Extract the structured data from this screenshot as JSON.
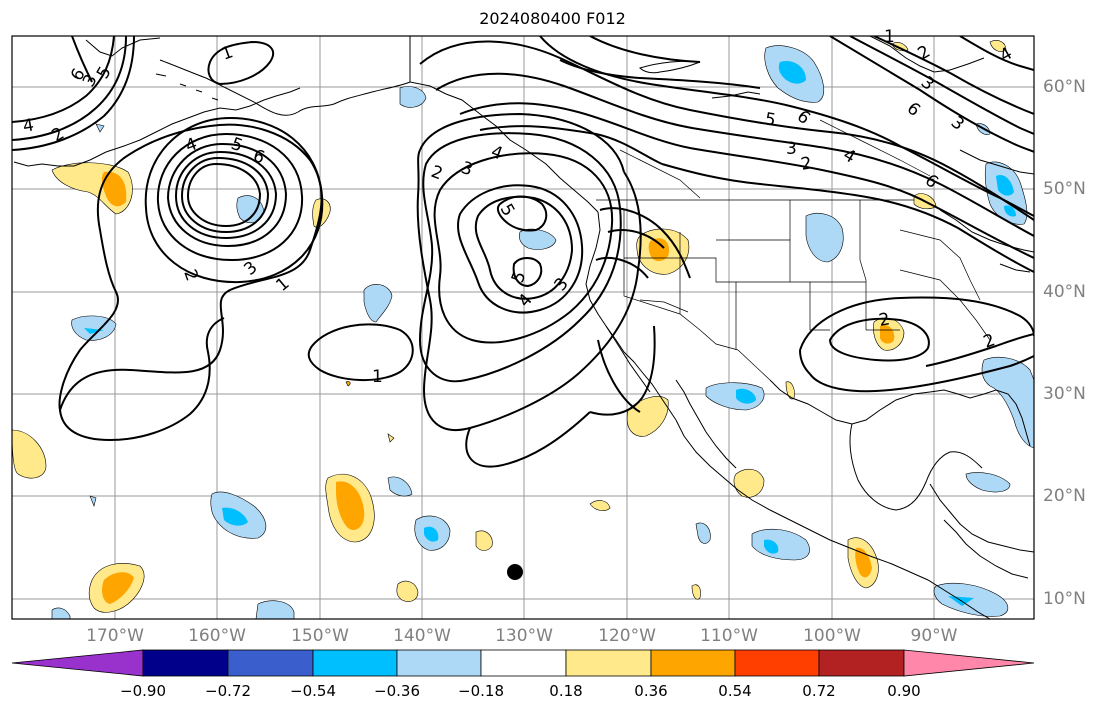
{
  "title": "2024080400 F012",
  "lat_labels": [
    "60°N",
    "50°N",
    "40°N",
    "30°N",
    "20°N",
    "10°N"
  ],
  "lon_labels": [
    "170°W",
    "160°W",
    "150°W",
    "140°W",
    "130°W",
    "120°W",
    "110°W",
    "100°W",
    "90°W"
  ],
  "colorbar": {
    "labels": [
      "−0.90",
      "−0.72",
      "−0.54",
      "−0.36",
      "−0.18",
      "0.18",
      "0.36",
      "0.54",
      "0.72",
      "0.90"
    ],
    "colors": [
      "#9932cc",
      "#00008b",
      "#3a5fcd",
      "#00bfff",
      "#add8f6",
      "#ffffff",
      "#ffe98a",
      "#ffa500",
      "#ff3f00",
      "#b22222",
      "#ff88aa"
    ]
  },
  "contour_labels": [
    "1",
    "2",
    "3",
    "4",
    "5",
    "6",
    "1",
    "2",
    "3",
    "4",
    "5",
    "6",
    "5",
    "4",
    "3",
    "5",
    "4",
    "3",
    "2",
    "1",
    "2",
    "6",
    "5",
    "4",
    "3",
    "2",
    "1",
    "6",
    "3",
    "2",
    "2",
    "3",
    "4",
    "6"
  ],
  "colors": {
    "land_outline": "#000000",
    "grid": "#999999",
    "positive_light": "#ffe98a",
    "positive_mid": "#ffa500",
    "negative_light": "#add8f6",
    "negative_mid": "#00bfff"
  }
}
